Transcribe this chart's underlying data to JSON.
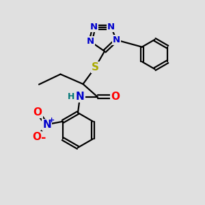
{
  "bg_color": "#e0e0e0",
  "atom_colors": {
    "C": "#000000",
    "N": "#0000cc",
    "O": "#ff0000",
    "S": "#aaaa00",
    "H": "#007777"
  },
  "figsize": [
    3.0,
    3.0
  ],
  "dpi": 100
}
